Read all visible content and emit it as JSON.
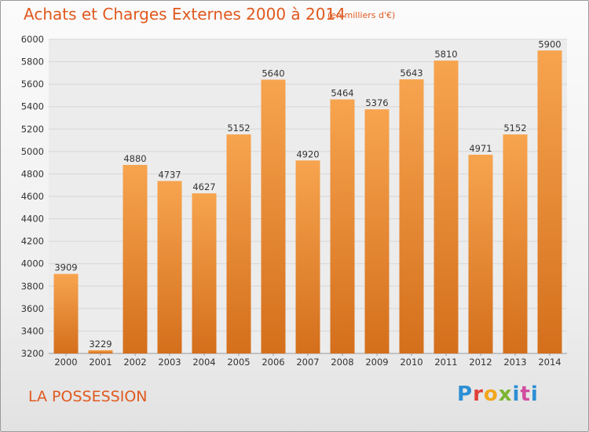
{
  "header": {
    "title": "Achats et Charges Externes 2000 à 2014",
    "unit_note": "(en milliers d'€)"
  },
  "footer": {
    "place": "LA POSSESSION",
    "logo_text": "Proxiti"
  },
  "colors": {
    "title": "#e0591e",
    "bar_top": "#f7a44f",
    "bar_bottom": "#d46f1c",
    "grid": "#d6d6d6",
    "axis_text": "#333333"
  },
  "chart_data": {
    "type": "bar",
    "title": "Achats et Charges Externes 2000 à 2014",
    "subtitle": "(en milliers d'€)",
    "categories": [
      "2000",
      "2001",
      "2002",
      "2003",
      "2004",
      "2005",
      "2006",
      "2007",
      "2008",
      "2009",
      "2010",
      "2011",
      "2012",
      "2013",
      "2014"
    ],
    "values": [
      3909,
      3229,
      4880,
      4737,
      4627,
      5152,
      5640,
      4920,
      5464,
      5376,
      5643,
      5810,
      4971,
      5152,
      5900
    ],
    "ylim": [
      3200,
      6000
    ],
    "yticks": [
      3200,
      3400,
      3600,
      3800,
      4000,
      4200,
      4400,
      4600,
      4800,
      5000,
      5200,
      5400,
      5600,
      5800,
      6000
    ],
    "grid": true,
    "data_labels": true
  }
}
